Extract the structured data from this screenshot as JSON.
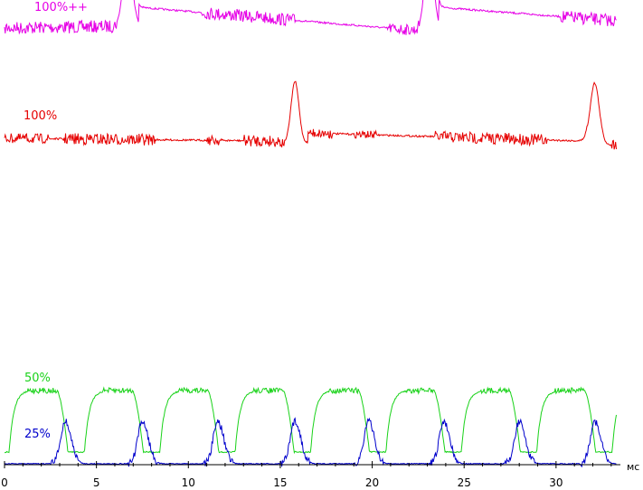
{
  "chart_data": {
    "type": "line",
    "title": "",
    "xlabel": "мс",
    "ylabel": "",
    "xlim": [
      0,
      33.5
    ],
    "xticks": [
      0,
      5,
      10,
      15,
      20,
      25,
      30
    ],
    "grid": false,
    "legend": "inline labels",
    "series": [
      {
        "name": "100%++",
        "color": "#e600e6",
        "label": "100%++"
      },
      {
        "name": "100%",
        "color": "#e60000",
        "label": "100%"
      },
      {
        "name": "50%",
        "color": "#19d219",
        "label": "50%"
      },
      {
        "name": "25%",
        "color": "#0000cc",
        "label": "25%"
      }
    ]
  }
}
